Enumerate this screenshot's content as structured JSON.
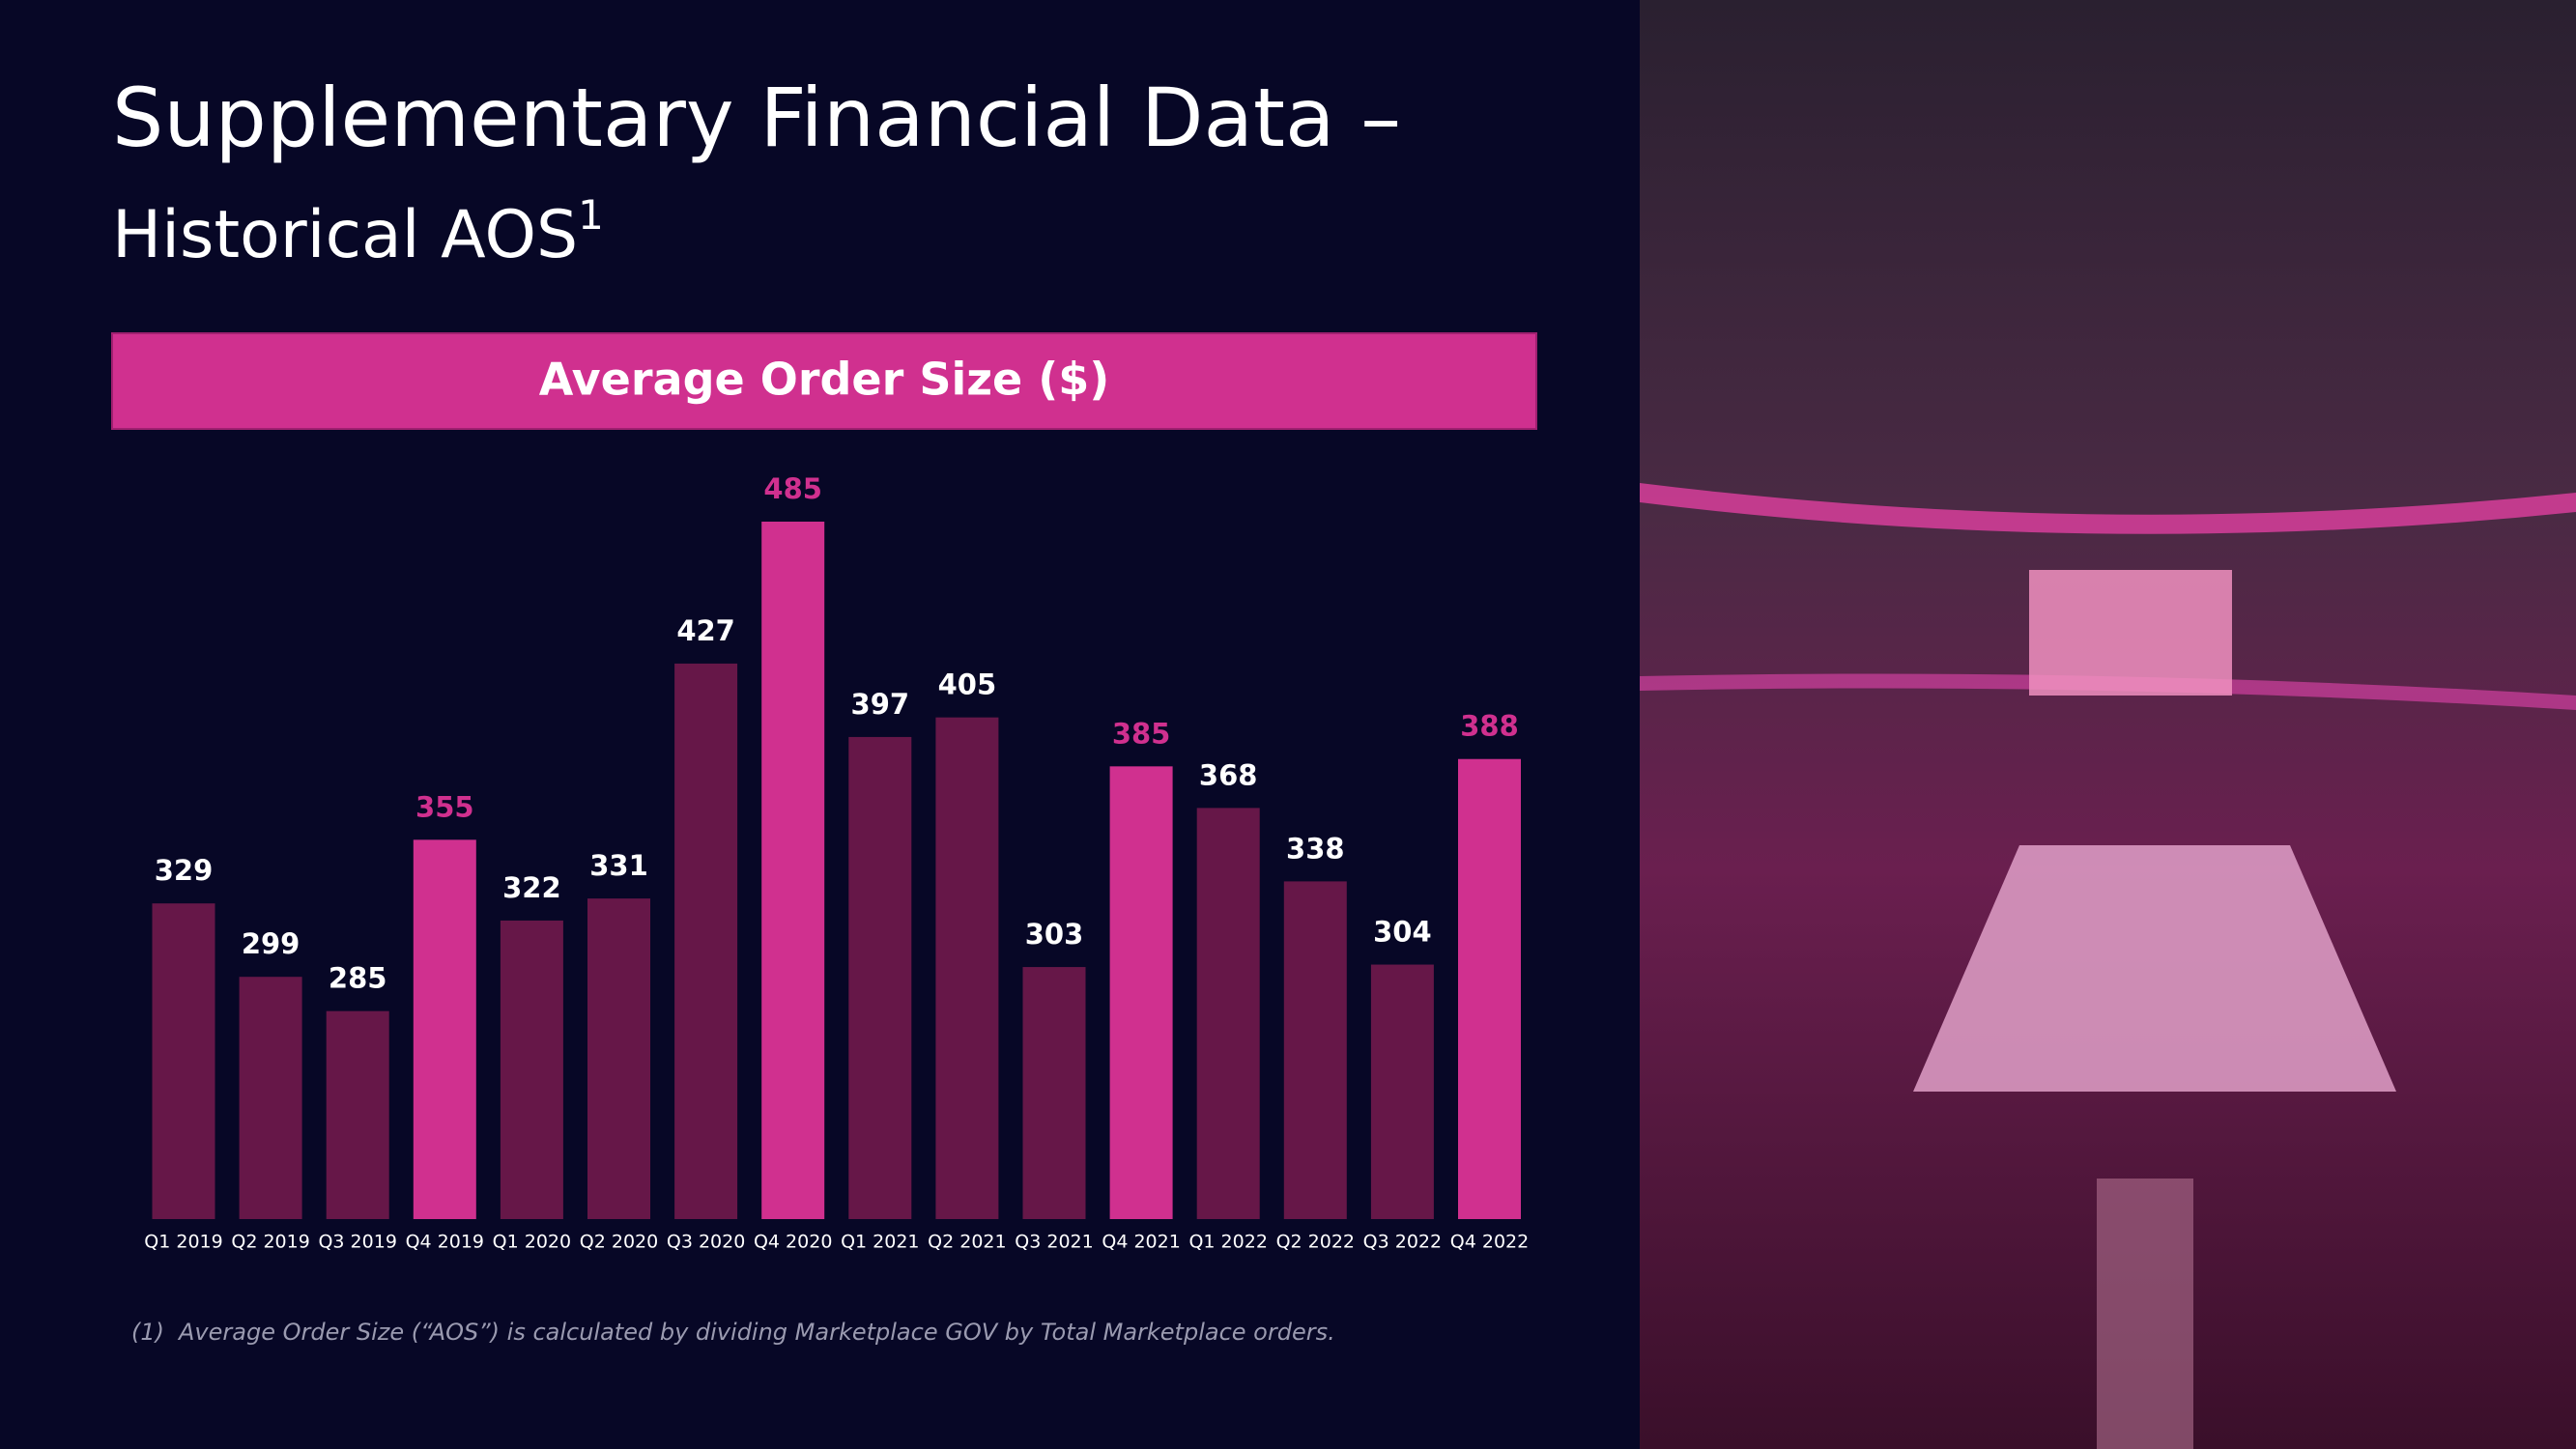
{
  "chart_data": {
    "type": "bar",
    "title": "Supplementary Financial Data –",
    "subtitle": "Historical AOS",
    "subtitle_superscript": "1",
    "chart_title": "Average Order Size ($)",
    "categories": [
      "Q1 2019",
      "Q2 2019",
      "Q3 2019",
      "Q4 2019",
      "Q1 2020",
      "Q2 2020",
      "Q3 2020",
      "Q4 2020",
      "Q1 2021",
      "Q2 2021",
      "Q3 2021",
      "Q4 2021",
      "Q1 2022",
      "Q2 2022",
      "Q3 2022",
      "Q4 2022"
    ],
    "values": [
      329,
      299,
      285,
      355,
      322,
      331,
      427,
      485,
      397,
      405,
      303,
      385,
      368,
      338,
      304,
      388
    ],
    "color": "#661748",
    "highlight_color": "#d0308f",
    "colors": [
      "#661748",
      "#661748",
      "#661748",
      "#d0308f",
      "#661748",
      "#661748",
      "#661748",
      "#d0308f",
      "#661748",
      "#661748",
      "#661748",
      "#d0308f",
      "#661748",
      "#661748",
      "#661748",
      "#d0308f"
    ],
    "ylim": [
      200,
      500
    ],
    "footnote": {
      "marker": "(1)",
      "text": "Average Order Size (“AOS”) is calculated by dividing Marketplace GOV by Total Marketplace orders."
    }
  }
}
